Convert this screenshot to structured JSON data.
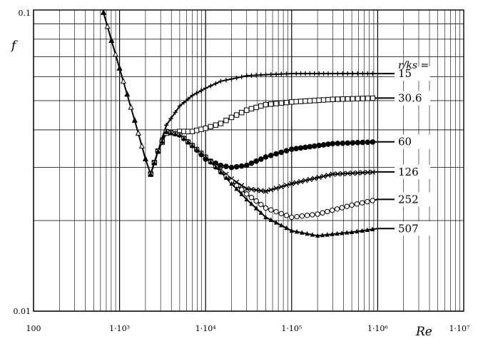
{
  "chart_data": {
    "type": "line",
    "title": "",
    "xlabel": "Re",
    "ylabel": "f",
    "x_scale": "log",
    "y_scale": "log",
    "xlim": [
      100,
      10000000
    ],
    "ylim": [
      0.01,
      0.1
    ],
    "grid": true,
    "x_tick_labels": [
      {
        "value": 100,
        "label": "100"
      },
      {
        "value": 1000,
        "label": "1·10³"
      },
      {
        "value": 10000,
        "label": "1·10⁴"
      },
      {
        "value": 100000,
        "label": "1·10⁵"
      },
      {
        "value": 1000000,
        "label": "1·10⁶"
      },
      {
        "value": 10000000,
        "label": "1·10⁷"
      }
    ],
    "y_tick_labels": [
      {
        "value": 0.01,
        "label": "0.01"
      },
      {
        "value": 0.1,
        "label": "0.1"
      }
    ],
    "legend_title": "r/ks =",
    "laminar": {
      "x": [
        650,
        1000,
        1500,
        2000,
        2300
      ],
      "y": [
        0.098,
        0.064,
        0.043,
        0.032,
        0.0285
      ]
    },
    "series": [
      {
        "name": "15",
        "marker": "+",
        "x": [
          2300,
          2800,
          3500,
          5000,
          7000,
          10000,
          15000,
          20000,
          30000,
          50000,
          100000,
          300000,
          1000000
        ],
        "y": [
          0.0285,
          0.034,
          0.0415,
          0.048,
          0.052,
          0.055,
          0.058,
          0.059,
          0.0605,
          0.061,
          0.0615,
          0.0615,
          0.0615
        ]
      },
      {
        "name": "30.6",
        "marker": "□",
        "x": [
          2300,
          2800,
          3500,
          5000,
          7000,
          10000,
          15000,
          20000,
          30000,
          50000,
          100000,
          300000,
          1000000
        ],
        "y": [
          0.0285,
          0.034,
          0.039,
          0.0395,
          0.0395,
          0.0405,
          0.042,
          0.044,
          0.0465,
          0.0485,
          0.0495,
          0.0505,
          0.051
        ]
      },
      {
        "name": "60",
        "marker": "●",
        "x": [
          2300,
          2800,
          3500,
          5000,
          7000,
          10000,
          15000,
          20000,
          30000,
          50000,
          100000,
          300000,
          1000000
        ],
        "y": [
          0.0285,
          0.034,
          0.0395,
          0.0385,
          0.0355,
          0.032,
          0.0305,
          0.03,
          0.0305,
          0.0325,
          0.0345,
          0.036,
          0.0365
        ]
      },
      {
        "name": "126",
        "marker": "×",
        "x": [
          2300,
          2800,
          3500,
          5000,
          7000,
          10000,
          15000,
          20000,
          30000,
          50000,
          100000,
          300000,
          1000000
        ],
        "y": [
          0.0285,
          0.034,
          0.0395,
          0.0385,
          0.0355,
          0.0325,
          0.0295,
          0.0275,
          0.0255,
          0.025,
          0.0265,
          0.0285,
          0.029
        ]
      },
      {
        "name": "252",
        "marker": "○",
        "x": [
          2300,
          2800,
          3500,
          5000,
          7000,
          10000,
          15000,
          20000,
          30000,
          50000,
          100000,
          200000,
          500000,
          1000000
        ],
        "y": [
          0.0285,
          0.034,
          0.0395,
          0.0385,
          0.0355,
          0.0325,
          0.029,
          0.027,
          0.0245,
          0.022,
          0.0205,
          0.021,
          0.0225,
          0.0235
        ]
      },
      {
        "name": "507",
        "marker": "▲",
        "x": [
          2300,
          2800,
          3500,
          5000,
          7000,
          10000,
          15000,
          20000,
          30000,
          50000,
          100000,
          200000,
          500000,
          1000000
        ],
        "y": [
          0.0285,
          0.034,
          0.0395,
          0.0385,
          0.0355,
          0.0325,
          0.029,
          0.0265,
          0.0235,
          0.0205,
          0.0185,
          0.0178,
          0.0183,
          0.0188
        ]
      }
    ]
  }
}
